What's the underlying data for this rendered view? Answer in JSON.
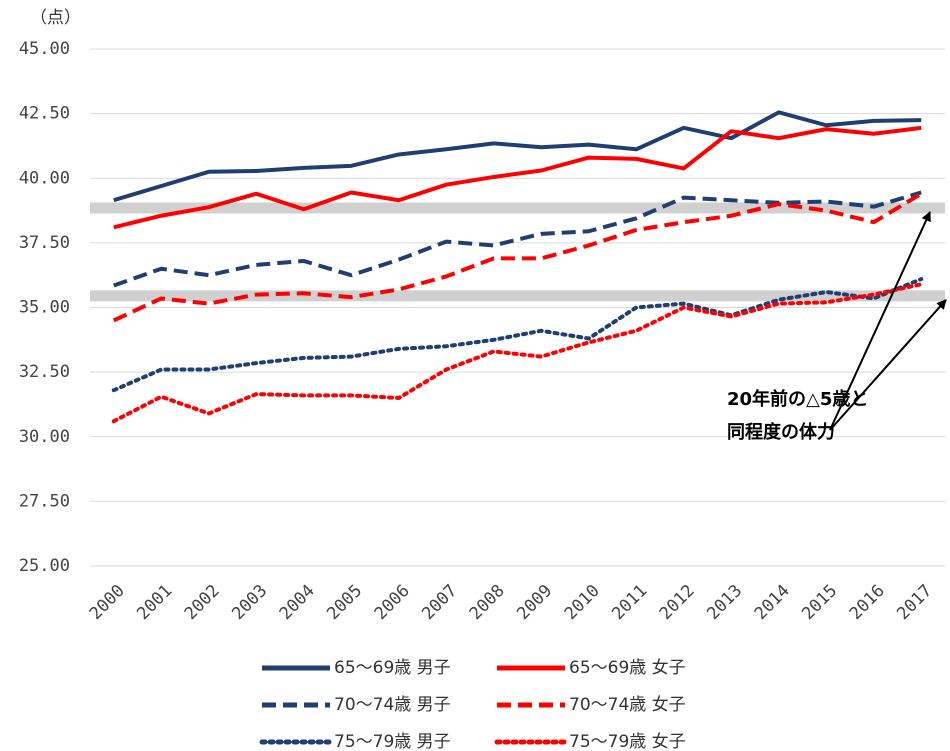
{
  "chart_data": {
    "type": "line",
    "unit_label": "（点）",
    "categories": [
      "2000",
      "2001",
      "2002",
      "2003",
      "2004",
      "2005",
      "2006",
      "2007",
      "2008",
      "2009",
      "2010",
      "2011",
      "2012",
      "2013",
      "2014",
      "2015",
      "2016",
      "2017"
    ],
    "series": [
      {
        "name": "65～69歳 男子",
        "color": "#1f3f73",
        "dash": "solid",
        "values": [
          39.15,
          39.7,
          40.25,
          40.28,
          40.4,
          40.48,
          40.92,
          41.12,
          41.35,
          41.2,
          41.3,
          41.12,
          41.95,
          41.55,
          42.55,
          42.05,
          42.22,
          42.25
        ]
      },
      {
        "name": "65～69歳 女子",
        "color": "#ff0000",
        "dash": "solid",
        "values": [
          38.1,
          38.55,
          38.88,
          39.4,
          38.8,
          39.45,
          39.15,
          39.75,
          40.05,
          40.3,
          40.8,
          40.75,
          40.38,
          41.82,
          41.55,
          41.9,
          41.72,
          41.95
        ]
      },
      {
        "name": "70～74歳 男子",
        "color": "#1f3f73",
        "dash": "dashed",
        "values": [
          35.85,
          36.5,
          36.25,
          36.65,
          36.8,
          36.25,
          36.85,
          37.55,
          37.4,
          37.85,
          37.95,
          38.45,
          39.25,
          39.15,
          39.05,
          39.1,
          38.9,
          39.45
        ]
      },
      {
        "name": "70～74歳 女子",
        "color": "#ff0000",
        "dash": "dashed",
        "values": [
          34.5,
          35.35,
          35.15,
          35.5,
          35.55,
          35.4,
          35.7,
          36.2,
          36.9,
          36.9,
          37.4,
          38.0,
          38.3,
          38.55,
          39.0,
          38.75,
          38.3,
          39.4
        ]
      },
      {
        "name": "75～79歳 男子",
        "color": "#1f3f73",
        "dash": "dotted",
        "values": [
          31.8,
          32.6,
          32.6,
          32.85,
          33.05,
          33.1,
          33.4,
          33.5,
          33.75,
          34.1,
          33.8,
          35.0,
          35.15,
          34.7,
          35.3,
          35.6,
          35.35,
          36.1
        ]
      },
      {
        "name": "75～79歳 女子",
        "color": "#ff0000",
        "dash": "dotted",
        "values": [
          30.6,
          31.55,
          30.9,
          31.65,
          31.6,
          31.6,
          31.5,
          32.6,
          33.3,
          33.1,
          33.65,
          34.1,
          35.0,
          34.65,
          35.15,
          35.2,
          35.5,
          35.9
        ]
      }
    ],
    "ylim": [
      25,
      45
    ],
    "yticks": [
      {
        "value": 25,
        "label": "25.00"
      },
      {
        "value": 27.5,
        "label": "27.50"
      },
      {
        "value": 30,
        "label": "30.00"
      },
      {
        "value": 32.5,
        "label": "32.50"
      },
      {
        "value": 35,
        "label": "35.00"
      },
      {
        "value": 37.5,
        "label": "37.50"
      },
      {
        "value": 40,
        "label": "40.00"
      },
      {
        "value": 42.5,
        "label": "42.50"
      },
      {
        "value": 45,
        "label": "45.00"
      }
    ],
    "grid": true,
    "reference_bands": [
      38.85,
      35.45
    ],
    "annotation": [
      "20年前の△5歳と",
      "同程度の体力"
    ],
    "legend": "bottom"
  }
}
